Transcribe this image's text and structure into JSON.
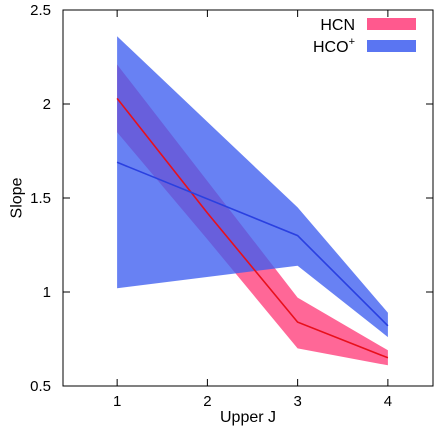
{
  "chart_data": {
    "type": "line",
    "title": "",
    "xlabel": "Upper J",
    "ylabel": "Slope",
    "xlim": [
      0.4,
      4.5
    ],
    "ylim": [
      0.5,
      2.5
    ],
    "xticks": [
      1,
      2,
      3,
      4
    ],
    "yticks": [
      0.5,
      1,
      1.5,
      2,
      2.5
    ],
    "xtick_labels": [
      "1",
      "2",
      "3",
      "4"
    ],
    "ytick_labels": [
      "0.5",
      "1",
      "1.5",
      "2",
      "2.5"
    ],
    "grid": false,
    "legend": "top-right",
    "series": [
      {
        "legend_label": "HCN",
        "legend_sup": "",
        "line_color": "#e8101c",
        "band_color": "#ff3c7a",
        "band_opacity": 0.78,
        "x": [
          1,
          2,
          3,
          4
        ],
        "y": [
          2.03,
          1.42,
          0.84,
          0.65
        ],
        "lower": [
          1.85,
          1.28,
          0.7,
          0.61
        ],
        "upper": [
          2.21,
          1.59,
          0.97,
          0.69
        ]
      },
      {
        "legend_label": "HCO",
        "legend_sup": "+",
        "line_color": "#2a40e0",
        "band_color": "#3d5df0",
        "band_opacity": 0.78,
        "x": [
          1,
          3,
          4
        ],
        "y": [
          1.69,
          1.3,
          0.82
        ],
        "lower": [
          1.02,
          1.14,
          0.76
        ],
        "upper": [
          2.36,
          1.45,
          0.89
        ]
      }
    ]
  }
}
